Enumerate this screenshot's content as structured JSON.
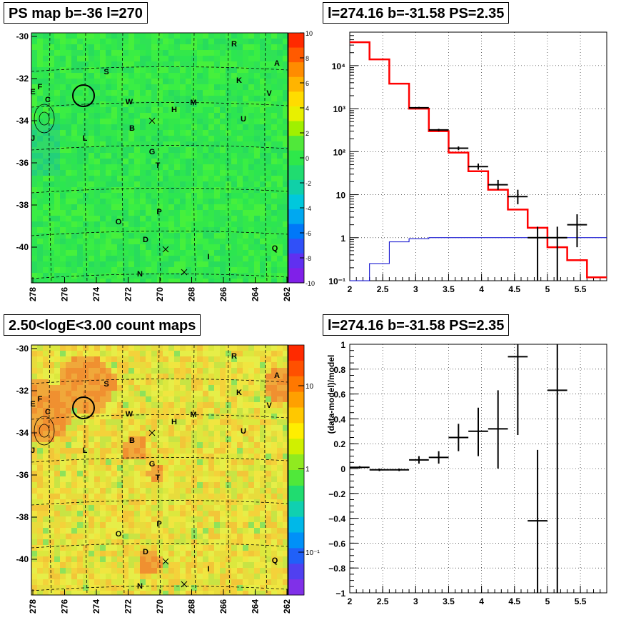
{
  "titles": {
    "map1": "PS map b=-36 l=270",
    "spectrum": "l=274.16 b=-31.58 PS=2.35",
    "map2": "2.50<logE<3.00 count maps",
    "residual": "l=274.16 b=-31.58 PS=2.35"
  },
  "maps": {
    "y_ticks": [
      "-30",
      "-32",
      "-34",
      "-36",
      "-38",
      "-40"
    ],
    "x_ticks": [
      "278",
      "276",
      "274",
      "272",
      "270",
      "268",
      "266",
      "264",
      "262"
    ],
    "source_labels": [
      "R",
      "A",
      "S",
      "K",
      "V",
      "F",
      "E",
      "C",
      "W",
      "M",
      "H",
      "U",
      "J",
      "L",
      "B",
      "G",
      "T",
      "P",
      "O",
      "D",
      "Q",
      "I",
      "N"
    ],
    "cbar1_ticks": [
      "10",
      "8",
      "6",
      "4",
      "2",
      "0",
      "-2",
      "-4",
      "-6",
      "-8",
      "-10"
    ],
    "cbar2_ticks": [
      "10",
      "1",
      "10⁻¹"
    ]
  },
  "chart_data": [
    {
      "type": "line",
      "title": "l=274.16 b=-31.58 PS=2.35",
      "log_y": true,
      "xlim": [
        2,
        5.9
      ],
      "ylim": [
        0.1,
        60000
      ],
      "x_ticks": [
        "2",
        "2.5",
        "3",
        "3.5",
        "4",
        "4.5",
        "5",
        "5.5"
      ],
      "y_ticks": [
        "10⁻¹",
        "1",
        "10",
        "10²",
        "10³",
        "10⁴"
      ],
      "series": [
        {
          "color": "#ff0000",
          "kind": "step",
          "bin_edges": [
            2.0,
            2.3,
            2.6,
            2.9,
            3.2,
            3.5,
            3.8,
            4.1,
            4.4,
            4.7,
            5.0,
            5.3,
            5.6,
            5.9
          ],
          "values": [
            35000,
            14000,
            3800,
            1000,
            300,
            95,
            35,
            13,
            4.5,
            1.7,
            0.6,
            0.3,
            0.12
          ]
        },
        {
          "color": "#0000cc",
          "kind": "step",
          "bin_edges": [
            2.0,
            2.3,
            2.6,
            2.9,
            3.2,
            3.5,
            3.8,
            4.1,
            4.4,
            4.7,
            5.0,
            5.3,
            5.6,
            5.9
          ],
          "values": [
            0.05,
            0.25,
            0.8,
            0.95,
            1.0,
            1.0,
            1.0,
            1.0,
            1.0,
            1.0,
            1.0,
            1.0,
            1.0
          ]
        },
        {
          "color": "#000000",
          "kind": "errorbar",
          "points": [
            {
              "x": 3.05,
              "y": 1050,
              "xerr": 0.15,
              "lo": 1000,
              "hi": 1100
            },
            {
              "x": 3.35,
              "y": 320,
              "xerr": 0.15,
              "lo": 300,
              "hi": 340
            },
            {
              "x": 3.65,
              "y": 120,
              "xerr": 0.15,
              "lo": 108,
              "hi": 132
            },
            {
              "x": 3.95,
              "y": 45,
              "xerr": 0.15,
              "lo": 38,
              "hi": 53
            },
            {
              "x": 4.25,
              "y": 17,
              "xerr": 0.15,
              "lo": 13,
              "hi": 22
            },
            {
              "x": 4.55,
              "y": 9,
              "xerr": 0.15,
              "lo": 6,
              "hi": 13
            },
            {
              "x": 4.85,
              "y": 1,
              "xerr": 0.15,
              "lo": 0.1,
              "hi": 1.8
            },
            {
              "x": 5.15,
              "y": 1,
              "xerr": 0.15,
              "lo": 0.1,
              "hi": 1.8
            },
            {
              "x": 5.45,
              "y": 2,
              "xerr": 0.15,
              "lo": 0.6,
              "hi": 3.5
            }
          ]
        }
      ]
    },
    {
      "type": "scatter",
      "title": "l=274.16 b=-31.58 PS=2.35",
      "ylabel": "(data-model)/model",
      "xlim": [
        2,
        5.9
      ],
      "ylim": [
        -1,
        1
      ],
      "x_ticks": [
        "2",
        "2.5",
        "3",
        "3.5",
        "4",
        "4.5",
        "5",
        "5.5"
      ],
      "y_ticks": [
        "−1",
        "−0.8",
        "−0.6",
        "−0.4",
        "−0.2",
        "0",
        "0.2",
        "0.4",
        "0.6",
        "0.8",
        "1"
      ],
      "points": [
        {
          "x": 2.15,
          "y": 0.01,
          "xerr": 0.15,
          "lo": 0.0,
          "hi": 0.02
        },
        {
          "x": 2.45,
          "y": -0.01,
          "xerr": 0.15,
          "lo": -0.02,
          "hi": 0.0
        },
        {
          "x": 2.75,
          "y": -0.01,
          "xerr": 0.15,
          "lo": -0.02,
          "hi": 0.0
        },
        {
          "x": 3.05,
          "y": 0.07,
          "xerr": 0.15,
          "lo": 0.04,
          "hi": 0.1
        },
        {
          "x": 3.35,
          "y": 0.09,
          "xerr": 0.15,
          "lo": 0.04,
          "hi": 0.14
        },
        {
          "x": 3.65,
          "y": 0.25,
          "xerr": 0.15,
          "lo": 0.14,
          "hi": 0.36
        },
        {
          "x": 3.95,
          "y": 0.3,
          "xerr": 0.15,
          "lo": 0.1,
          "hi": 0.49
        },
        {
          "x": 4.25,
          "y": 0.32,
          "xerr": 0.15,
          "lo": 0.0,
          "hi": 0.63
        },
        {
          "x": 4.55,
          "y": 0.9,
          "xerr": 0.15,
          "lo": 0.27,
          "hi": 1.0
        },
        {
          "x": 4.85,
          "y": -0.42,
          "xerr": 0.15,
          "lo": -1.0,
          "hi": 0.15
        },
        {
          "x": 5.15,
          "y": 0.63,
          "xerr": 0.15,
          "lo": -1.0,
          "hi": 1.0
        }
      ]
    }
  ]
}
